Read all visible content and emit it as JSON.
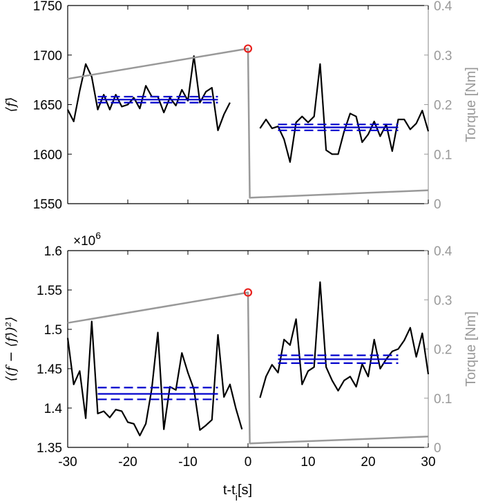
{
  "colors": {
    "black": "#000000",
    "gray": "#999999",
    "blue": "#0000cc",
    "red": "#e8211d"
  },
  "xlabel_main": "t-t",
  "xlabel_sub": "i",
  "xlabel_unit": "[s]",
  "chart_data": [
    {
      "type": "line",
      "title": "",
      "ylabel": "⟨f⟩",
      "ylabel_right": "Torque [Nm]",
      "xlim": [
        -30,
        30
      ],
      "ylim": [
        1550,
        1750
      ],
      "ylim_right": [
        0,
        0.4
      ],
      "x_ticks": [],
      "x_tick_labels": [],
      "y_ticks": [
        1550,
        1600,
        1650,
        1700,
        1750
      ],
      "y_tick_labels": [
        "1550",
        "1600",
        "1650",
        "1700",
        "1750"
      ],
      "y_right_ticks": [
        0,
        0.1,
        0.2,
        0.3,
        0.4
      ],
      "y_right_tick_labels": [
        "0",
        "0.1",
        "0.2",
        "0.3",
        "0.4"
      ],
      "grid": false,
      "series": [
        {
          "axis": "left",
          "color": "black",
          "x": [
            -30,
            -29,
            -28,
            -27,
            -26,
            -25,
            -24,
            -23,
            -22,
            -21,
            -20,
            -19,
            -18,
            -17,
            -16,
            -15,
            -14,
            -13,
            -12,
            -11,
            -10,
            -9,
            -8,
            -7,
            -6,
            -5,
            -4,
            -3,
            -2,
            -1
          ],
          "y": [
            1645,
            1633,
            1664,
            1691,
            1678,
            1645,
            1660,
            1645,
            1660,
            1648,
            1650,
            1657,
            1646,
            1669,
            1658,
            1658,
            1642,
            1657,
            1649,
            1665,
            1654,
            1699,
            1652,
            1663,
            1667,
            1624,
            1640,
            1652,
            null,
            null
          ]
        },
        {
          "axis": "left",
          "color": "black",
          "x": [
            2,
            3,
            4,
            5,
            6,
            7,
            8,
            9,
            10,
            11,
            12,
            13,
            14,
            15,
            16,
            17,
            18,
            19,
            20,
            21,
            22,
            23,
            24,
            25,
            26,
            27,
            28,
            29,
            30
          ],
          "y": [
            1626,
            1635,
            1626,
            1628,
            1615,
            1592,
            1632,
            1638,
            1632,
            1638,
            1691,
            1604,
            1600,
            1600,
            1623,
            1641,
            1638,
            1612,
            1620,
            1633,
            1618,
            1630,
            1603,
            1635,
            1635,
            1625,
            1631,
            1644,
            1623
          ]
        },
        {
          "axis": "right",
          "color": "gray",
          "x": [
            -30,
            0,
            0.3,
            30
          ],
          "y": [
            0.252,
            0.313,
            0.012,
            0.027
          ]
        }
      ],
      "hlines": [
        {
          "x": [
            -25,
            -5
          ],
          "y": 1655,
          "style": "solid",
          "color": "blue"
        },
        {
          "x": [
            -25,
            -5
          ],
          "y": 1658,
          "style": "dashed",
          "color": "blue"
        },
        {
          "x": [
            -25,
            -5
          ],
          "y": 1652,
          "style": "dashed",
          "color": "blue"
        },
        {
          "x": [
            5,
            25
          ],
          "y": 1627,
          "style": "solid",
          "color": "blue"
        },
        {
          "x": [
            5,
            25
          ],
          "y": 1630,
          "style": "dashed",
          "color": "blue"
        },
        {
          "x": [
            5,
            25
          ],
          "y": 1624,
          "style": "dashed",
          "color": "blue"
        }
      ],
      "markers": [
        {
          "axis": "right",
          "x": 0,
          "y": 0.313,
          "shape": "circle",
          "color": "red"
        }
      ]
    },
    {
      "type": "line",
      "title": "",
      "ylabel": "⟨(f − ⟨f⟩)²⟩",
      "ylabel_right": "Torque [Nm]",
      "exponent_label": "×10",
      "exponent_power": "6",
      "xlim": [
        -30,
        30
      ],
      "ylim": [
        1.35,
        1.6
      ],
      "ylim_right": [
        0,
        0.4
      ],
      "x_ticks": [
        -30,
        -20,
        -10,
        0,
        10,
        20,
        30
      ],
      "x_tick_labels": [
        "-30",
        "-20",
        "-10",
        "0",
        "10",
        "20",
        "30"
      ],
      "y_ticks": [
        1.35,
        1.4,
        1.45,
        1.5,
        1.55,
        1.6
      ],
      "y_tick_labels": [
        "1.35",
        "1.4",
        "1.45",
        "1.5",
        "1.55",
        "1.6"
      ],
      "y_right_ticks": [
        0,
        0.1,
        0.2,
        0.3,
        0.4
      ],
      "y_right_tick_labels": [
        "0",
        "0.1",
        "0.2",
        "0.3",
        "0.4"
      ],
      "grid": false,
      "series": [
        {
          "axis": "left",
          "color": "black",
          "x": [
            -30,
            -29,
            -28,
            -27,
            -26,
            -25,
            -24,
            -23,
            -22,
            -21,
            -20,
            -19,
            -18,
            -17,
            -16,
            -15,
            -14,
            -13,
            -12,
            -11,
            -10,
            -9,
            -8,
            -7,
            -6,
            -5,
            -4,
            -3,
            -2,
            -1
          ],
          "y": [
            1.489,
            1.43,
            1.447,
            1.387,
            1.51,
            1.393,
            1.396,
            1.388,
            1.398,
            1.396,
            1.382,
            1.38,
            1.365,
            1.38,
            1.425,
            1.496,
            1.373,
            1.427,
            1.423,
            1.47,
            1.445,
            1.424,
            1.372,
            1.378,
            1.385,
            1.493,
            1.414,
            1.43,
            1.399,
            1.373
          ]
        },
        {
          "axis": "left",
          "color": "black",
          "x": [
            2,
            3,
            4,
            5,
            6,
            7,
            8,
            9,
            10,
            11,
            12,
            13,
            14,
            15,
            16,
            17,
            18,
            19,
            20,
            21,
            22,
            23,
            24,
            25,
            26,
            27,
            28,
            29,
            30
          ],
          "y": [
            1.413,
            1.44,
            1.455,
            1.445,
            1.487,
            1.48,
            1.513,
            1.43,
            1.447,
            1.452,
            1.56,
            1.452,
            1.435,
            1.422,
            1.435,
            1.44,
            1.427,
            1.456,
            1.44,
            1.487,
            1.45,
            1.462,
            1.472,
            1.475,
            1.486,
            1.502,
            1.465,
            1.495,
            1.443
          ]
        },
        {
          "axis": "right",
          "color": "gray",
          "x": [
            -30,
            0,
            0.3,
            30
          ],
          "y": [
            0.253,
            0.315,
            0.008,
            0.022
          ]
        }
      ],
      "hlines": [
        {
          "x": [
            -25,
            -5
          ],
          "y": 1.418,
          "style": "solid",
          "color": "blue"
        },
        {
          "x": [
            -25,
            -5
          ],
          "y": 1.426,
          "style": "dashed",
          "color": "blue"
        },
        {
          "x": [
            -25,
            -5
          ],
          "y": 1.411,
          "style": "dashed",
          "color": "blue"
        },
        {
          "x": [
            5,
            25
          ],
          "y": 1.462,
          "style": "solid",
          "color": "blue"
        },
        {
          "x": [
            5,
            25
          ],
          "y": 1.467,
          "style": "dashed",
          "color": "blue"
        },
        {
          "x": [
            5,
            25
          ],
          "y": 1.457,
          "style": "dashed",
          "color": "blue"
        }
      ],
      "markers": [
        {
          "axis": "right",
          "x": 0,
          "y": 0.315,
          "shape": "circle",
          "color": "red"
        }
      ]
    }
  ]
}
